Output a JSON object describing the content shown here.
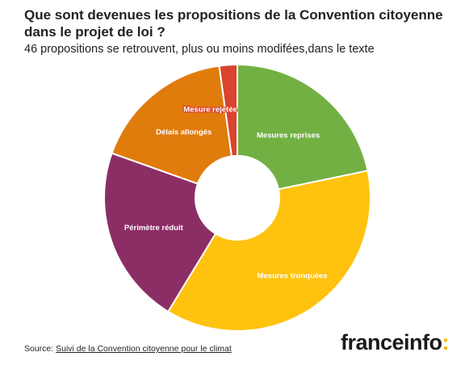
{
  "header": {
    "title": "Que sont devenues les propositions de la Convention citoyenne dans le projet de loi ?",
    "subtitle": "46 propositions se retrouvent, plus ou moins modifées,dans le texte"
  },
  "footer": {
    "source_prefix": "Source: ",
    "source_link": "Suivi de la Convention citoyenne pour le climat",
    "brand": "franceinfo",
    "brand_suffix": ":"
  },
  "colors": {
    "mesures_reprises": "#72b043",
    "mesures_tronquees": "#ffc20e",
    "perimetre_reduit": "#8c2e66",
    "delais_allonges": "#e07c0c",
    "mesure_rejetee": "#d9432f"
  },
  "chart_data": {
    "type": "pie",
    "donut": true,
    "start_angle_deg": 0,
    "categories": [
      "Mesures reprises",
      "Mesures tronquées",
      "Périmètre réduit",
      "Délais allongés",
      "Mesure rejetée"
    ],
    "values": [
      10,
      17,
      10,
      8,
      1
    ],
    "colors": [
      "#72b043",
      "#ffc20e",
      "#8c2e66",
      "#e07c0c",
      "#d9432f"
    ]
  }
}
